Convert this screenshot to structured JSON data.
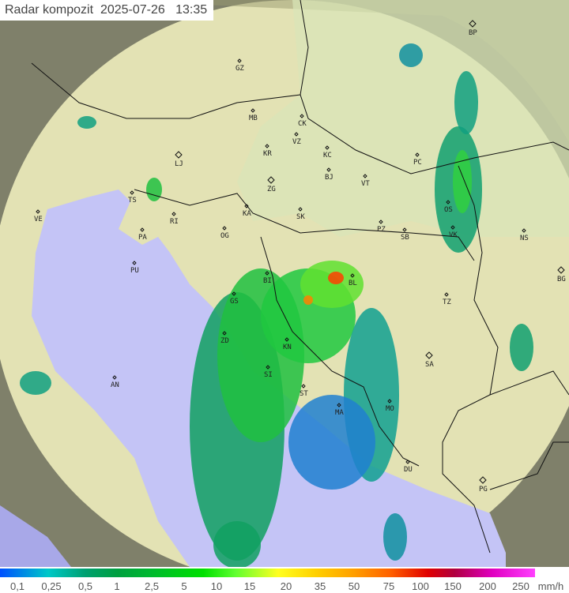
{
  "title": {
    "label": "Radar kompozit",
    "date": "2025-07-26",
    "time": "13:35"
  },
  "cities": [
    "GZ",
    "MB",
    "CK",
    "VZ",
    "KR",
    "KC",
    "LJ",
    "ZG",
    "BJ",
    "VT",
    "PC",
    "BP",
    "TS",
    "VE",
    "RI",
    "KA",
    "SK",
    "OS",
    "NS",
    "PA",
    "OG",
    "PZ",
    "SB",
    "VK",
    "PU",
    "BI",
    "BL",
    "BG",
    "GS",
    "TZ",
    "ZD",
    "KN",
    "SA",
    "AN",
    "SI",
    "ST",
    "MO",
    "MA",
    "DU",
    "PG"
  ],
  "legend": {
    "ticks": [
      "0,1",
      "0,25",
      "0,5",
      "1",
      "2,5",
      "5",
      "10",
      "15",
      "20",
      "35",
      "50",
      "75",
      "100",
      "150",
      "200",
      "250"
    ],
    "unit": "mm/h"
  },
  "colors": {
    "sea": "#c0c0f8",
    "land": "#e6e2b0",
    "coverage_outside": "#8a8a6a"
  }
}
